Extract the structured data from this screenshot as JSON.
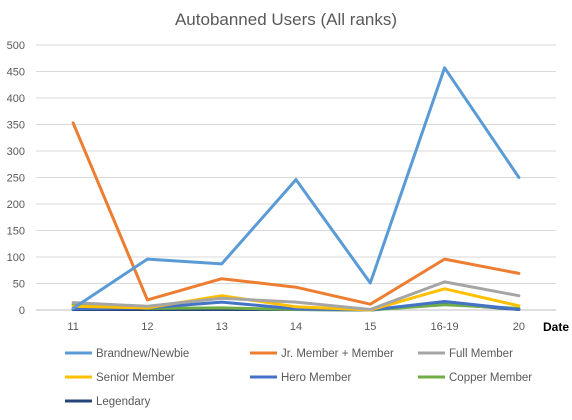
{
  "chart_data": {
    "type": "line",
    "title": "Autobanned Users (All ranks)",
    "xlabel": "Date",
    "ylabel": "",
    "ylim": [
      0,
      500
    ],
    "yticks": [
      0,
      50,
      100,
      150,
      200,
      250,
      300,
      350,
      400,
      450,
      500
    ],
    "categories": [
      "11",
      "12",
      "13",
      "14",
      "15",
      "16-19",
      "20"
    ],
    "grid": "horizontal",
    "legend_position": "bottom",
    "series": [
      {
        "name": "Brandnew/Newbie",
        "color": "#5B9BD5",
        "values": [
          3,
          96,
          87,
          246,
          51,
          457,
          250
        ]
      },
      {
        "name": "Jr. Member + Member",
        "color": "#ED7D31",
        "values": [
          353,
          19,
          59,
          43,
          11,
          96,
          69
        ]
      },
      {
        "name": "Full Member",
        "color": "#A5A5A5",
        "values": [
          14,
          7,
          22,
          15,
          1,
          53,
          27
        ]
      },
      {
        "name": "Senior Member",
        "color": "#FFC000",
        "values": [
          7,
          4,
          27,
          6,
          0,
          40,
          8
        ]
      },
      {
        "name": "Hero Member",
        "color": "#4472C4",
        "values": [
          2,
          4,
          15,
          2,
          0,
          16,
          1
        ]
      },
      {
        "name": "Copper Member",
        "color": "#70AD47",
        "values": [
          10,
          3,
          4,
          1,
          0,
          10,
          3
        ]
      },
      {
        "name": "Legendary",
        "color": "#264478",
        "values": [
          1,
          1,
          1,
          1,
          0,
          12,
          1
        ]
      }
    ]
  }
}
